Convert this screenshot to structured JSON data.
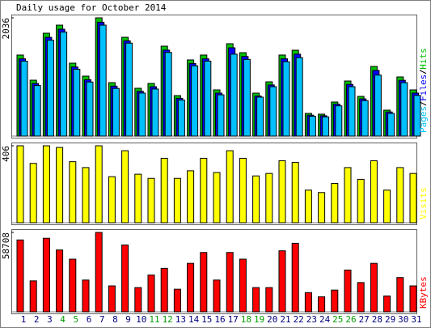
{
  "chart_data": [
    {
      "type": "bar",
      "title": "Daily usage for October 2014",
      "ylim": [
        0,
        2036
      ],
      "yticks": [
        2036
      ],
      "series": [
        {
          "name": "Hits",
          "color": "#00c000",
          "values": [
            1395,
            962,
            1771,
            1910,
            1255,
            1032,
            2036,
            920,
            1701,
            823,
            906,
            1548,
            697,
            1311,
            1395,
            795,
            1590,
            1436,
            739,
            934,
            1395,
            1478,
            390,
            377,
            586,
            948,
            683,
            1199,
            446,
            1018,
            795
          ]
        },
        {
          "name": "Files",
          "color": "#0000ff",
          "values": [
            1330,
            905,
            1700,
            1840,
            1190,
            970,
            1960,
            860,
            1640,
            770,
            850,
            1480,
            650,
            1250,
            1330,
            740,
            1520,
            1370,
            690,
            880,
            1330,
            1410,
            360,
            350,
            550,
            890,
            640,
            1130,
            415,
            960,
            740
          ]
        },
        {
          "name": "Pages",
          "color": "#00c0ff",
          "values": [
            1290,
            870,
            1650,
            1790,
            1150,
            930,
            1910,
            820,
            1600,
            740,
            810,
            1440,
            620,
            1210,
            1290,
            710,
            1410,
            1320,
            670,
            850,
            1280,
            1350,
            340,
            330,
            520,
            850,
            610,
            1050,
            390,
            920,
            700
          ]
        }
      ]
    },
    {
      "type": "bar",
      "ylim": [
        0,
        406
      ],
      "yticks": [
        406
      ],
      "series": [
        {
          "name": "Visits",
          "color": "#ffff00",
          "values": [
            406,
            313,
            406,
            397,
            322,
            291,
            406,
            243,
            380,
            256,
            234,
            340,
            234,
            274,
            340,
            265,
            380,
            340,
            247,
            260,
            327,
            318,
            172,
            159,
            207,
            291,
            229,
            327,
            172,
            291,
            260
          ]
        }
      ]
    },
    {
      "type": "bar",
      "ylim": [
        0,
        58708
      ],
      "yticks": [
        58708
      ],
      "series": [
        {
          "name": "KBytes",
          "color": "#ff0000",
          "values": [
            53150,
            22870,
            54390,
            45740,
            38940,
            23490,
            58708,
            19160,
            49440,
            17920,
            27190,
            32140,
            16690,
            35850,
            43880,
            23490,
            43880,
            38940,
            17920,
            17920,
            45120,
            50680,
            14210,
            11120,
            16070,
            30900,
            21630,
            35850,
            11740,
            25340,
            19160
          ]
        }
      ],
      "categories": [
        "1",
        "2",
        "3",
        "4",
        "5",
        "6",
        "7",
        "8",
        "9",
        "10",
        "11",
        "12",
        "13",
        "14",
        "15",
        "16",
        "17",
        "18",
        "19",
        "20",
        "21",
        "22",
        "23",
        "24",
        "25",
        "26",
        "27",
        "28",
        "29",
        "30",
        "31"
      ],
      "category_colors": [
        "#000080",
        "#000080",
        "#000080",
        "#00a000",
        "#00a000",
        "#000080",
        "#000080",
        "#000080",
        "#000080",
        "#000080",
        "#00a000",
        "#00a000",
        "#000080",
        "#000080",
        "#000080",
        "#000080",
        "#000080",
        "#00a000",
        "#00a000",
        "#000080",
        "#000080",
        "#000080",
        "#000080",
        "#000080",
        "#00a000",
        "#00a000",
        "#000080",
        "#000080",
        "#000080",
        "#000080",
        "#000080"
      ]
    }
  ]
}
